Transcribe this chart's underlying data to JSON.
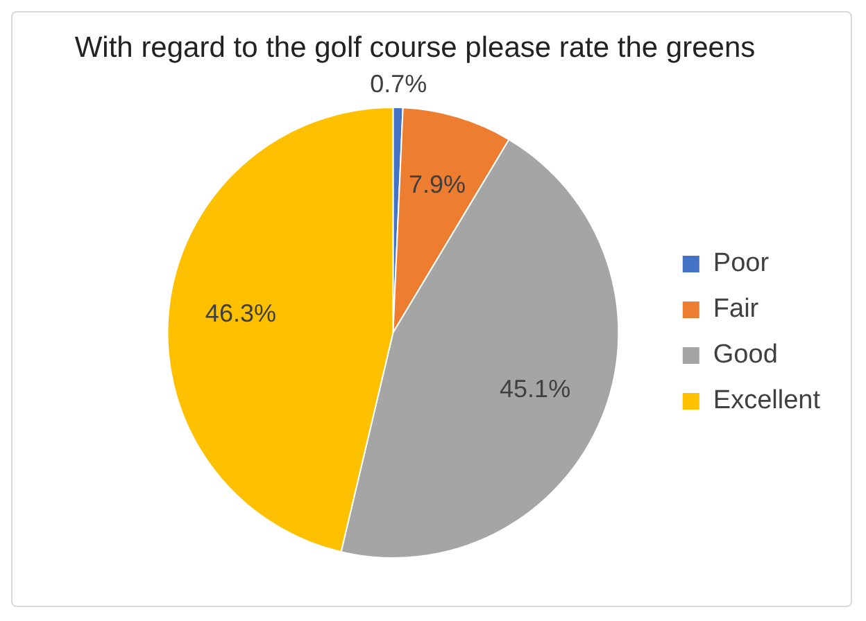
{
  "chart_data": {
    "type": "pie",
    "title": "With regard to the golf course please rate the greens",
    "categories": [
      "Poor",
      "Fair",
      "Good",
      "Excellent"
    ],
    "values": [
      0.7,
      7.9,
      45.1,
      46.3
    ],
    "colors": [
      "#4472c4",
      "#ed7d31",
      "#a5a5a5",
      "#ffc000"
    ],
    "value_labels": [
      "0.7%",
      "7.9%",
      "45.1%",
      "46.3%"
    ],
    "legend": "right"
  }
}
